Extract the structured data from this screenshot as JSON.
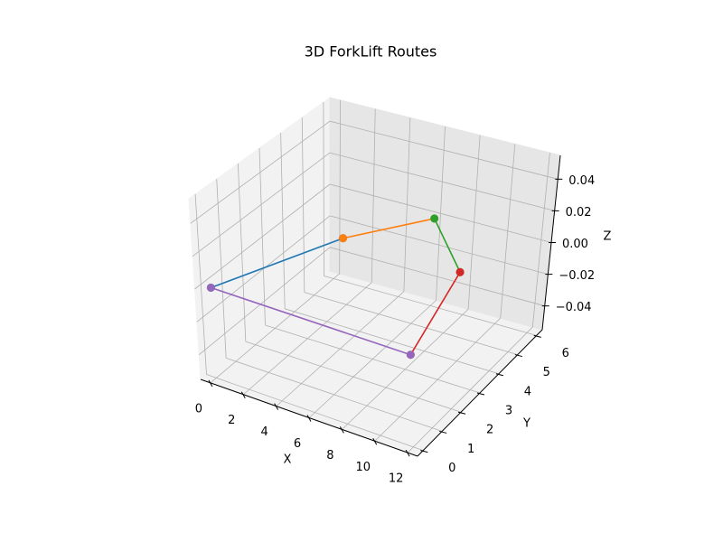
{
  "chart_data": {
    "type": "line3d",
    "title": "3D ForkLift Routes",
    "xlabel": "X",
    "ylabel": "Y",
    "zlabel": "Z",
    "xlim": [
      -0.6,
      12.6
    ],
    "ylim": [
      -0.3,
      6.3
    ],
    "zlim": [
      -0.055,
      0.055
    ],
    "xticks": [
      0,
      2,
      4,
      6,
      8,
      10,
      12
    ],
    "yticks": [
      0,
      1,
      2,
      3,
      4,
      5,
      6
    ],
    "zticks": [
      {
        "value": -0.04,
        "label": "−0.04"
      },
      {
        "value": -0.02,
        "label": "−0.02"
      },
      {
        "value": 0,
        "label": "0.00"
      },
      0.02,
      0.04
    ],
    "grid": true,
    "series": [
      {
        "color": "#1f77b4",
        "x": [
          0,
          3
        ],
        "y": [
          0,
          4
        ],
        "z": [
          0,
          0
        ]
      },
      {
        "color": "#ff7f0e",
        "x": [
          3,
          6
        ],
        "y": [
          4,
          6
        ],
        "z": [
          0,
          0
        ]
      },
      {
        "color": "#2ca02c",
        "x": [
          6,
          10
        ],
        "y": [
          6,
          4
        ],
        "z": [
          0,
          0
        ]
      },
      {
        "color": "#d62728",
        "x": [
          10,
          12
        ],
        "y": [
          4,
          0
        ],
        "z": [
          0,
          0
        ]
      },
      {
        "color": "#9467bd",
        "x": [
          12,
          0
        ],
        "y": [
          0,
          0
        ],
        "z": [
          0,
          0
        ]
      }
    ]
  }
}
